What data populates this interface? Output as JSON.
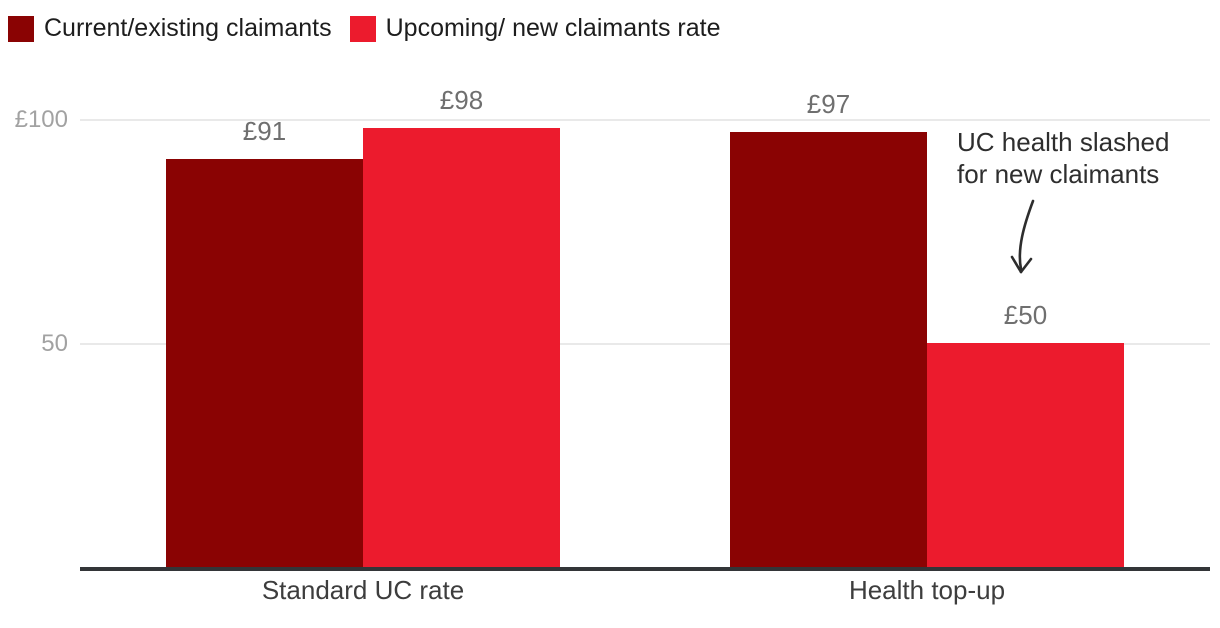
{
  "legend": {
    "items": [
      {
        "label": "Current/existing claimants",
        "color": "#8a0303"
      },
      {
        "label": "Upcoming/ new claimants rate",
        "color": "#ec1b2d"
      }
    ]
  },
  "annotation": {
    "line1": "UC health slashed",
    "line2": "for new claimants"
  },
  "chart_data": {
    "type": "bar",
    "categories": [
      "Standard UC rate",
      "Health top-up"
    ],
    "series": [
      {
        "name": "Current/existing claimants",
        "color": "#8a0303",
        "values": [
          91,
          97
        ],
        "value_labels": [
          "£91",
          "£97"
        ]
      },
      {
        "name": "Upcoming/ new claimants rate",
        "color": "#ec1b2d",
        "values": [
          98,
          50
        ],
        "value_labels": [
          "£98",
          "£50"
        ]
      }
    ],
    "yticks": [
      {
        "value": 100,
        "label": "£100"
      },
      {
        "value": 50,
        "label": "50"
      }
    ],
    "ylim": [
      0,
      105
    ],
    "xlabel": "",
    "ylabel": "",
    "grid": "horizontal",
    "legend_position": "top-left",
    "annotation": {
      "text": "UC health slashed for new claimants",
      "points_to": "Health top-up — Upcoming/ new claimants bar (£50)"
    },
    "colors": {
      "gridline": "#e9e9e9",
      "axis_line": "#333538",
      "tick_text": "#a2a2a2",
      "value_text": "#6f6f6f",
      "category_text": "#3d3d3d",
      "annotation_text": "#2e2e2e",
      "background": "#ffffff"
    }
  }
}
